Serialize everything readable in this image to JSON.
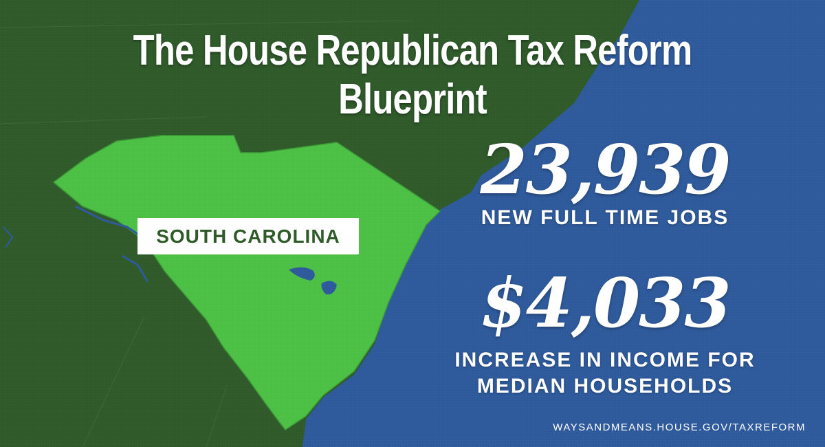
{
  "title": "The House Republican Tax Reform Blueprint",
  "state_label": "SOUTH CAROLINA",
  "stats": {
    "jobs_value": "23,939",
    "jobs_caption": "NEW FULL TIME JOBS",
    "income_value": "$4,033",
    "income_caption_line1": "INCREASE IN INCOME FOR",
    "income_caption_line2": "MEDIAN HOUSEHOLDS"
  },
  "footer_url": "WAYSANDMEANS.HOUSE.GOV/TAXREFORM",
  "colors": {
    "land_dark_green": "#2f5a2a",
    "state_light_green": "#4cbf45",
    "ocean_blue": "#2e5a9c",
    "text_white": "#ffffff",
    "label_text_green": "#2e5b27"
  }
}
